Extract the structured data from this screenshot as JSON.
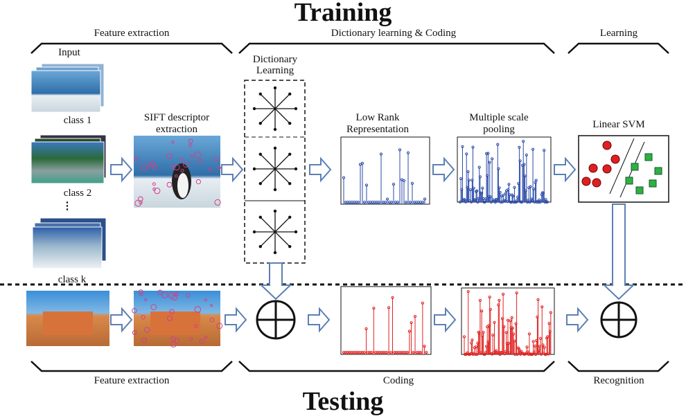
{
  "header": {
    "title": "Training"
  },
  "training": {
    "sections": [
      "Feature extraction",
      "Dictionary learning & Coding",
      "Learning"
    ],
    "input": "Input",
    "classes": [
      "class 1",
      "class 2",
      "⋮",
      "class k"
    ],
    "steps": {
      "sift": [
        "SIFT descriptor",
        "extraction"
      ],
      "dictionary": [
        "Dictionary",
        "Learning"
      ],
      "lrr": [
        "Low Rank",
        "Representation"
      ],
      "pooling": [
        "Multiple scale",
        "pooling"
      ],
      "svm": "Linear SVM"
    }
  },
  "testing": {
    "sections": [
      "Feature extraction",
      "Coding",
      "Recognition"
    ]
  },
  "footer": {
    "title": "Testing"
  }
}
